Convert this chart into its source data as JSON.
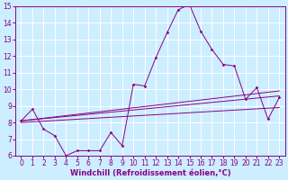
{
  "xlabel": "Windchill (Refroidissement éolien,°C)",
  "background_color": "#cceeff",
  "grid_color": "#aaddcc",
  "line_color": "#880088",
  "xlim": [
    -0.5,
    23.5
  ],
  "ylim": [
    6,
    15
  ],
  "xticks": [
    0,
    1,
    2,
    3,
    4,
    5,
    6,
    7,
    8,
    9,
    10,
    11,
    12,
    13,
    14,
    15,
    16,
    17,
    18,
    19,
    20,
    21,
    22,
    23
  ],
  "yticks": [
    6,
    7,
    8,
    9,
    10,
    11,
    12,
    13,
    14,
    15
  ],
  "main_series_x": [
    0,
    1,
    2,
    3,
    4,
    5,
    6,
    7,
    8,
    9,
    10,
    11,
    12,
    13,
    14,
    15,
    16,
    17,
    18,
    19,
    20,
    21,
    22,
    23
  ],
  "main_series_y": [
    8.1,
    8.8,
    7.6,
    7.2,
    6.0,
    6.3,
    6.3,
    6.3,
    7.4,
    6.6,
    10.3,
    10.2,
    11.9,
    13.4,
    14.8,
    15.1,
    13.5,
    12.4,
    11.5,
    11.4,
    9.4,
    10.1,
    8.2,
    9.5
  ],
  "trend_lines": [
    {
      "x": [
        0,
        23
      ],
      "y": [
        8.1,
        9.6
      ]
    },
    {
      "x": [
        0,
        23
      ],
      "y": [
        8.0,
        8.9
      ]
    },
    {
      "x": [
        0,
        23
      ],
      "y": [
        8.1,
        9.9
      ]
    }
  ],
  "tick_fontsize": 5.5,
  "xlabel_fontsize": 6.0
}
